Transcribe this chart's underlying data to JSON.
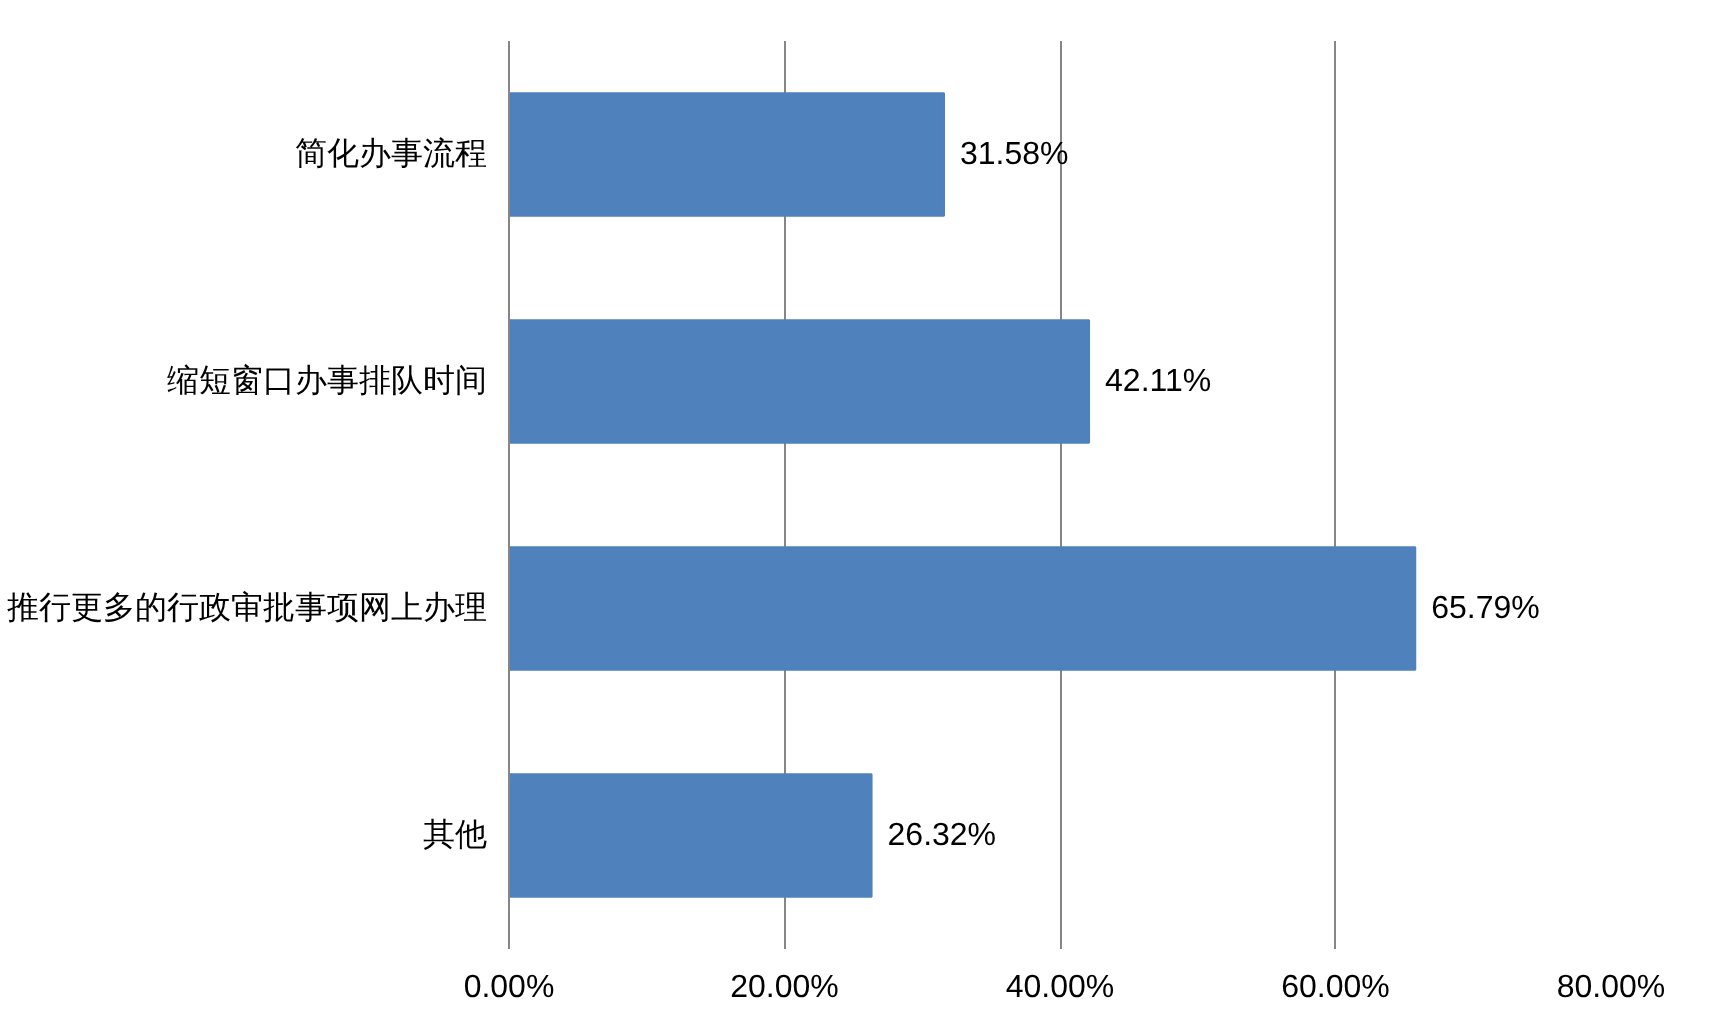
{
  "chart_data": {
    "type": "bar",
    "orientation": "horizontal",
    "categories": [
      "简化办事流程",
      "缩短窗口办事排队时间",
      "推行更多的行政审批事项网上办理",
      "其他"
    ],
    "values": [
      31.58,
      42.11,
      65.79,
      26.32
    ],
    "value_labels": [
      "31.58%",
      "42.11%",
      "65.79%",
      "26.32%"
    ],
    "color": "#4f81bd",
    "xlim": [
      0,
      80
    ],
    "xticks": [
      {
        "value": 0,
        "label": "0.00%"
      },
      {
        "value": 20,
        "label": "20.00%"
      },
      {
        "value": 40,
        "label": "40.00%"
      },
      {
        "value": 60,
        "label": "60.00%"
      },
      {
        "value": 80,
        "label": "80.00%"
      }
    ],
    "grid": "x"
  }
}
